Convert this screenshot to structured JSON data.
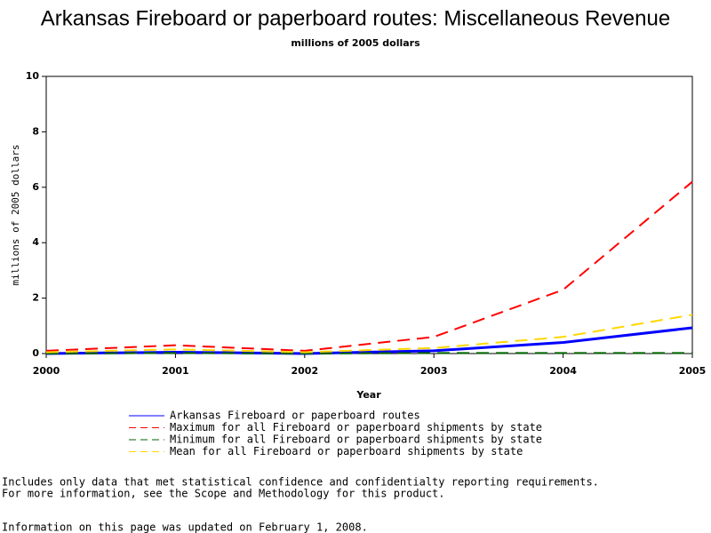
{
  "chart_data": {
    "type": "line",
    "title": "Arkansas Fireboard or paperboard routes: Miscellaneous Revenue",
    "subtitle": "millions of 2005 dollars",
    "x_label": "Year",
    "y_label": "millions of 2005 dollars",
    "x": [
      2000,
      2001,
      2002,
      2003,
      2004,
      2005
    ],
    "xlim": [
      2000,
      2005
    ],
    "xticks": [
      2000,
      2001,
      2002,
      2003,
      2004,
      2005
    ],
    "ylim": [
      0,
      10
    ],
    "yticks": [
      0,
      2,
      4,
      6,
      8,
      10
    ],
    "series": [
      {
        "name": "Arkansas Fireboard or paperboard routes",
        "color": "#0000ff",
        "dash": false,
        "values": [
          0.0,
          0.05,
          0.0,
          0.1,
          0.4,
          0.93
        ]
      },
      {
        "name": "Maximum for all Fireboard or paperboard shipments by state",
        "color": "#ff0000",
        "dash": true,
        "values": [
          0.1,
          0.3,
          0.1,
          0.6,
          2.3,
          6.2
        ]
      },
      {
        "name": "Minimum for all Fireboard or paperboard shipments by state",
        "color": "#006400",
        "dash": true,
        "values": [
          0.0,
          0.02,
          0.0,
          0.02,
          0.02,
          0.02
        ]
      },
      {
        "name": "Mean for all Fireboard or paperboard shipments by state",
        "color": "#ffd700",
        "dash": true,
        "values": [
          0.05,
          0.15,
          0.05,
          0.2,
          0.6,
          1.4
        ]
      }
    ],
    "footnotes": [
      "Includes only data that met statistical confidence and confidentialty reporting requirements.",
      "For more information, see the Scope and Methodology for this product.",
      "Information on this page was updated on February 1, 2008."
    ]
  }
}
